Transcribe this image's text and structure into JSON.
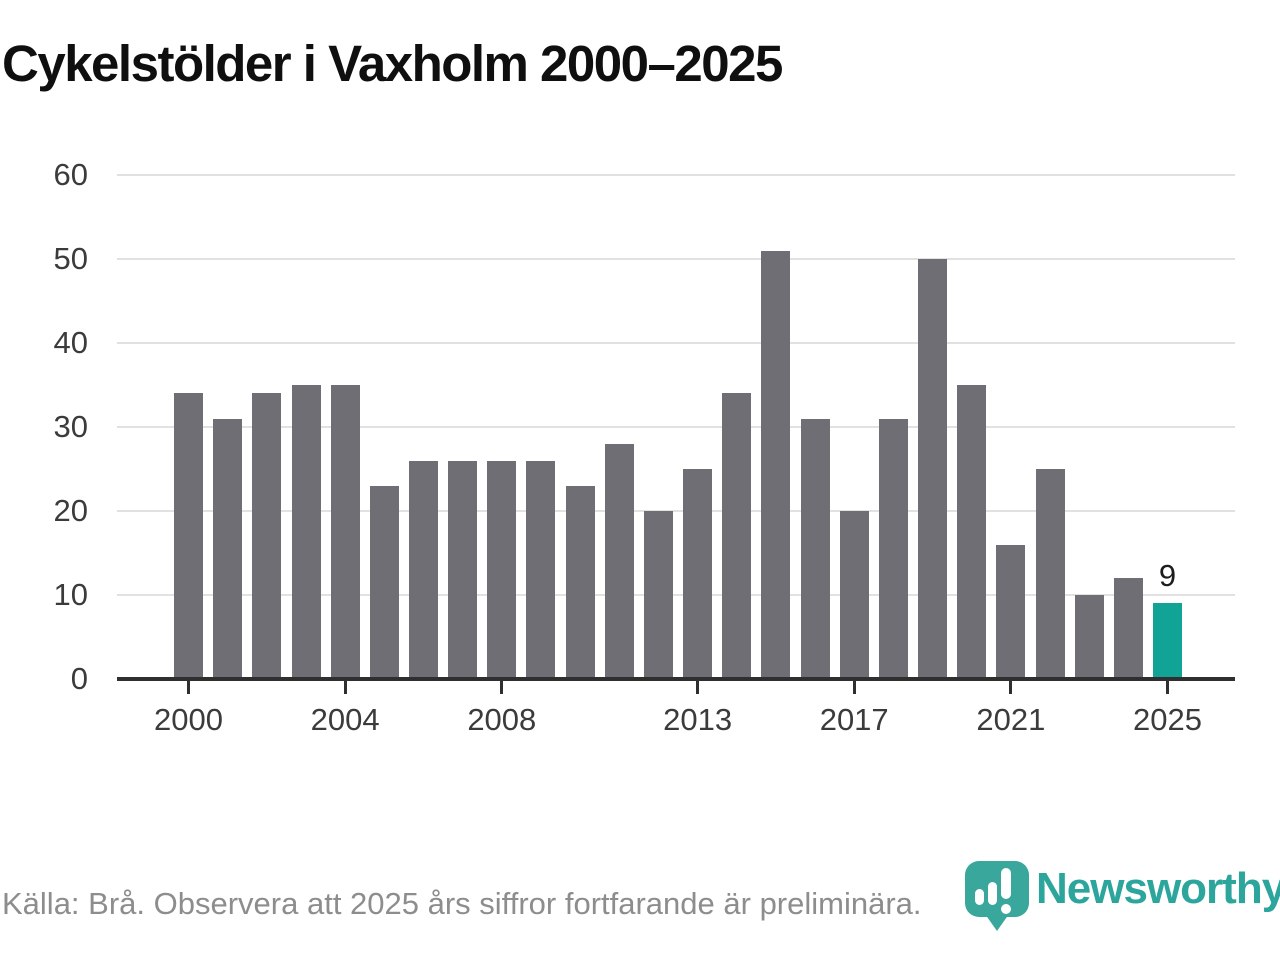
{
  "title": "Cykelstölder i Vaxholm 2000–2025",
  "footer": {
    "source_note": "Källa: Brå. Observera att 2025 års siffror fortfarande är preliminära."
  },
  "branding": {
    "logo_text": "Newsworthy",
    "logo_mark_color": "#3aa79c",
    "logo_text_color": "#2ca69c"
  },
  "colors": {
    "bar": "#6e6e74",
    "highlight_bar": "#10a396",
    "gridline": "#e1e1e1",
    "axis": "#2f2f2f",
    "tick_label": "#3b3b3b",
    "value_label": "#1c1c1c",
    "title": "#0f0f0f",
    "footer_text": "#8d8d8d"
  },
  "chart_data": {
    "type": "bar",
    "title": "Cykelstölder i Vaxholm 2000–2025",
    "categories": [
      2000,
      2001,
      2002,
      2003,
      2004,
      2005,
      2006,
      2007,
      2008,
      2009,
      2010,
      2011,
      2012,
      2013,
      2014,
      2015,
      2016,
      2017,
      2018,
      2019,
      2020,
      2021,
      2022,
      2023,
      2024,
      2025
    ],
    "values": [
      34,
      31,
      34,
      35,
      35,
      23,
      26,
      26,
      26,
      26,
      23,
      28,
      20,
      25,
      34,
      51,
      31,
      20,
      31,
      50,
      35,
      16,
      25,
      10,
      12,
      9
    ],
    "highlight_index": 25,
    "value_labels": [
      {
        "index": 25,
        "text": "9"
      }
    ],
    "xticks": [
      "2000",
      "2004",
      "2008",
      "2013",
      "2017",
      "2021",
      "2025"
    ],
    "yticks": [
      0,
      10,
      20,
      30,
      40,
      50,
      60
    ],
    "ylim": [
      0,
      60
    ],
    "xlabel": "",
    "ylabel": "",
    "grid": "horizontal",
    "legend": "none"
  }
}
